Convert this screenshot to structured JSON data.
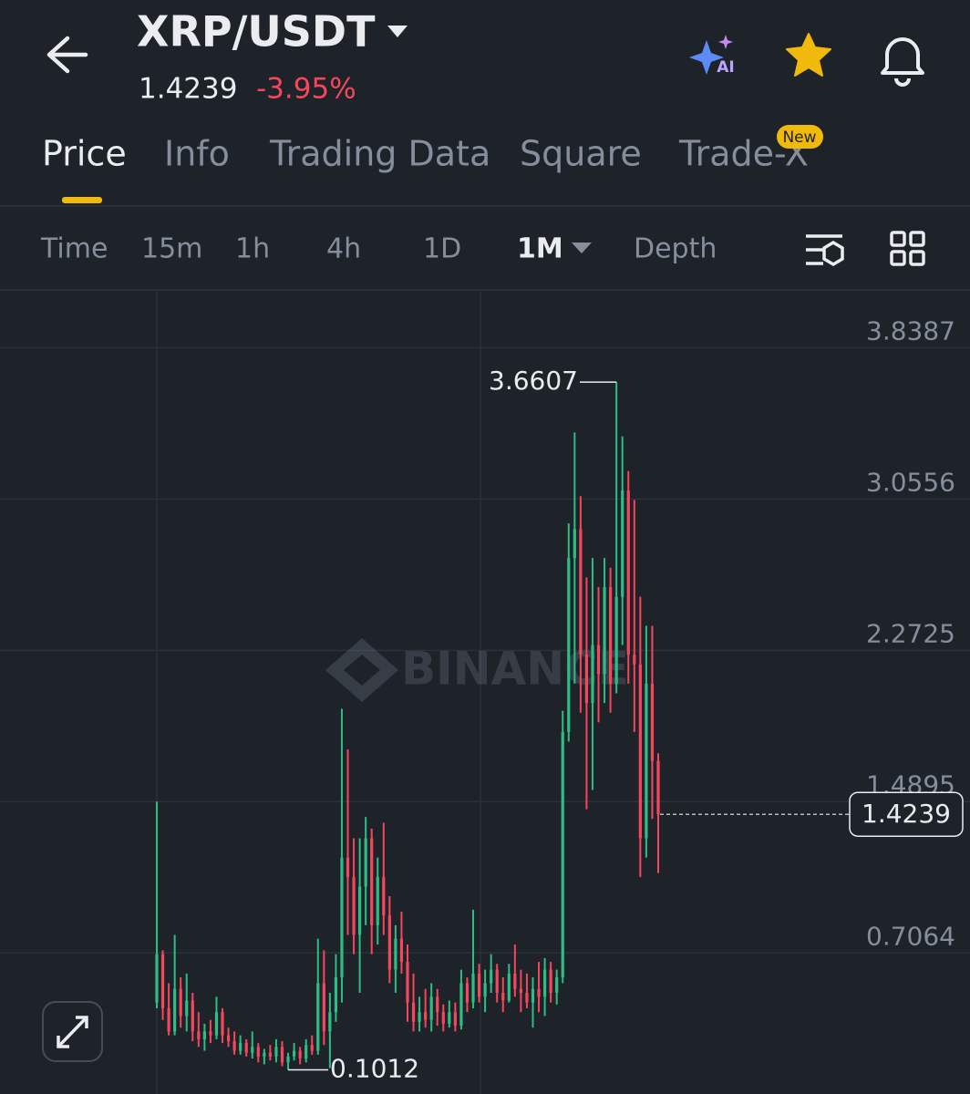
{
  "header": {
    "pair": "XRP/USDT",
    "price": "1.4239",
    "change": "-3.95%",
    "ai_badge": "AI"
  },
  "tabs": [
    "Price",
    "Info",
    "Trading Data",
    "Square",
    "Trade-X"
  ],
  "tab_badge": "New",
  "intervals": [
    "Time",
    "15m",
    "1h",
    "4h",
    "1D",
    "1M",
    "Depth"
  ],
  "watermark": "BINANCE",
  "chart_data": {
    "type": "candlestick",
    "ohlc": [
      [
        0.45,
        1.49,
        0.42,
        0.7
      ],
      [
        0.7,
        0.72,
        0.36,
        0.42
      ],
      [
        0.42,
        0.55,
        0.28,
        0.3
      ],
      [
        0.3,
        0.8,
        0.28,
        0.52
      ],
      [
        0.52,
        0.58,
        0.32,
        0.38
      ],
      [
        0.38,
        0.6,
        0.3,
        0.46
      ],
      [
        0.46,
        0.5,
        0.25,
        0.3
      ],
      [
        0.3,
        0.4,
        0.22,
        0.26
      ],
      [
        0.26,
        0.34,
        0.2,
        0.3
      ],
      [
        0.3,
        0.36,
        0.24,
        0.28
      ],
      [
        0.28,
        0.48,
        0.26,
        0.4
      ],
      [
        0.4,
        0.42,
        0.24,
        0.28
      ],
      [
        0.28,
        0.32,
        0.22,
        0.25
      ],
      [
        0.25,
        0.3,
        0.18,
        0.2
      ],
      [
        0.2,
        0.28,
        0.18,
        0.24
      ],
      [
        0.24,
        0.26,
        0.17,
        0.19
      ],
      [
        0.19,
        0.3,
        0.16,
        0.22
      ],
      [
        0.22,
        0.24,
        0.14,
        0.17
      ],
      [
        0.17,
        0.21,
        0.13,
        0.19
      ],
      [
        0.19,
        0.23,
        0.15,
        0.17
      ],
      [
        0.17,
        0.26,
        0.14,
        0.22
      ],
      [
        0.22,
        0.25,
        0.12,
        0.14
      ],
      [
        0.14,
        0.19,
        0.1012,
        0.17
      ],
      [
        0.17,
        0.24,
        0.15,
        0.2
      ],
      [
        0.2,
        0.22,
        0.13,
        0.16
      ],
      [
        0.16,
        0.26,
        0.14,
        0.23
      ],
      [
        0.23,
        0.28,
        0.18,
        0.2
      ],
      [
        0.2,
        0.78,
        0.18,
        0.55
      ],
      [
        0.55,
        0.72,
        0.23,
        0.3
      ],
      [
        0.3,
        0.5,
        0.11,
        0.4
      ],
      [
        0.4,
        0.7,
        0.35,
        0.58
      ],
      [
        0.58,
        1.97,
        0.45,
        1.2
      ],
      [
        1.2,
        1.76,
        0.8,
        1.1
      ],
      [
        1.1,
        1.3,
        0.7,
        0.8
      ],
      [
        0.8,
        1.3,
        0.5,
        1.05
      ],
      [
        1.05,
        1.41,
        0.85,
        1.3
      ],
      [
        1.3,
        1.35,
        0.7,
        0.85
      ],
      [
        0.85,
        1.2,
        0.75,
        1.1
      ],
      [
        1.1,
        1.38,
        0.8,
        0.9
      ],
      [
        0.9,
        1.0,
        0.55,
        0.62
      ],
      [
        0.62,
        0.85,
        0.5,
        0.78
      ],
      [
        0.78,
        0.92,
        0.6,
        0.66
      ],
      [
        0.66,
        0.75,
        0.35,
        0.45
      ],
      [
        0.45,
        0.6,
        0.3,
        0.35
      ],
      [
        0.35,
        0.48,
        0.3,
        0.4
      ],
      [
        0.4,
        0.52,
        0.32,
        0.36
      ],
      [
        0.36,
        0.55,
        0.3,
        0.48
      ],
      [
        0.48,
        0.52,
        0.33,
        0.4
      ],
      [
        0.4,
        0.44,
        0.3,
        0.34
      ],
      [
        0.34,
        0.46,
        0.32,
        0.4
      ],
      [
        0.4,
        0.45,
        0.3,
        0.33
      ],
      [
        0.33,
        0.62,
        0.31,
        0.55
      ],
      [
        0.55,
        0.58,
        0.4,
        0.45
      ],
      [
        0.45,
        0.93,
        0.42,
        0.6
      ],
      [
        0.6,
        0.65,
        0.45,
        0.48
      ],
      [
        0.48,
        0.62,
        0.4,
        0.55
      ],
      [
        0.55,
        0.7,
        0.5,
        0.62
      ],
      [
        0.62,
        0.65,
        0.45,
        0.5
      ],
      [
        0.5,
        0.58,
        0.4,
        0.46
      ],
      [
        0.46,
        0.65,
        0.45,
        0.6
      ],
      [
        0.6,
        0.75,
        0.48,
        0.52
      ],
      [
        0.52,
        0.62,
        0.4,
        0.5
      ],
      [
        0.5,
        0.6,
        0.42,
        0.45
      ],
      [
        0.45,
        0.58,
        0.32,
        0.52
      ],
      [
        0.52,
        0.66,
        0.4,
        0.48
      ],
      [
        0.48,
        0.68,
        0.38,
        0.62
      ],
      [
        0.62,
        0.66,
        0.45,
        0.5
      ],
      [
        0.5,
        0.62,
        0.44,
        0.58
      ],
      [
        0.58,
        1.96,
        0.55,
        1.85
      ],
      [
        1.85,
        2.93,
        1.8,
        2.75
      ],
      [
        2.75,
        3.4,
        2.1,
        2.9
      ],
      [
        2.9,
        3.07,
        1.95,
        2.25
      ],
      [
        2.25,
        2.65,
        1.45,
        2.0
      ],
      [
        2.0,
        2.75,
        1.55,
        2.3
      ],
      [
        2.3,
        2.6,
        1.9,
        2.15
      ],
      [
        2.15,
        2.75,
        2.0,
        2.6
      ],
      [
        2.6,
        2.7,
        1.95,
        2.1
      ],
      [
        2.1,
        3.6607,
        2.05,
        2.55
      ],
      [
        2.55,
        3.38,
        2.3,
        3.1
      ],
      [
        3.1,
        3.2,
        2.1,
        2.25
      ],
      [
        2.25,
        3.05,
        1.85,
        2.2
      ],
      [
        2.2,
        2.55,
        1.1,
        1.3
      ],
      [
        1.3,
        2.4,
        1.2,
        2.1
      ],
      [
        2.1,
        2.4,
        1.4,
        1.7
      ],
      [
        1.7,
        1.74,
        1.12,
        1.4239
      ]
    ],
    "ylim": [
      0,
      4.1
    ],
    "yticks": [
      0.7064,
      1.4895,
      2.2725,
      3.0556,
      3.8387
    ],
    "grid": true,
    "up_color": "#2ebd85",
    "down_color": "#f6465d",
    "high_label": 3.6607,
    "low_label": 0.1012,
    "last_price": 1.4239
  }
}
